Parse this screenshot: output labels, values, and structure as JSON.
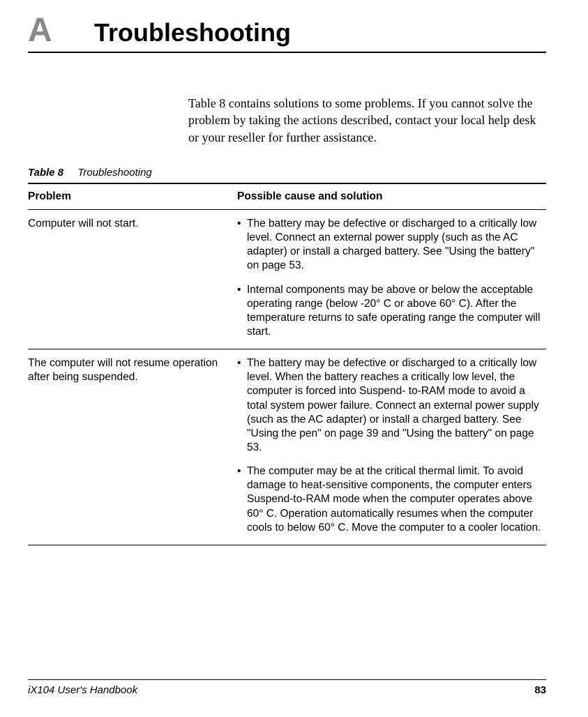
{
  "header": {
    "appendix_letter": "A",
    "title": "Troubleshooting"
  },
  "intro": "Table 8 contains solutions to some problems. If you cannot solve the problem by taking the actions described, contact your local help desk or your reseller for further assistance.",
  "table": {
    "caption_bold": "Table 8",
    "caption_text": "Troubleshooting",
    "header_problem": "Problem",
    "header_solution": "Possible cause and solution",
    "rows": [
      {
        "problem": "Computer will not start.",
        "solutions": [
          "The battery may be defective or discharged to a critically low level. Connect an external power supply (such as the AC adapter) or install a charged battery. See \"Using the battery\" on page 53.",
          "Internal components may be above or below the acceptable operating range (below -20° C or above 60° C). After the temperature returns to safe operating range the computer will start."
        ]
      },
      {
        "problem": "The computer will not resume operation after being suspended.",
        "solutions": [
          "The battery may be defective or discharged to a critically low level. When the battery reaches a critically low level, the computer is forced into Suspend- to-RAM mode to avoid a total system power failure. Connect an external power supply (such as the AC adapter) or install a charged battery. See \"Using the pen\" on page 39 and \"Using the battery\" on page 53.",
          "The computer may be at the critical thermal limit. To avoid damage to heat-sensitive components, the computer enters Suspend-to-RAM mode when the computer operates above 60° C. Operation automatically resumes when the computer cools to below 60° C. Move the computer to a cooler location."
        ]
      }
    ]
  },
  "footer": {
    "book_title": "iX104 User's Handbook",
    "page_number": "83"
  },
  "colors": {
    "text": "#000000",
    "appendix_letter": "#888888",
    "rule": "#000000",
    "background": "#ffffff"
  },
  "fonts": {
    "body": "Arial",
    "intro": "Times New Roman",
    "title_size_pt": 36,
    "appendix_size_pt": 48,
    "body_size_pt": 15.5,
    "intro_size_pt": 18
  }
}
